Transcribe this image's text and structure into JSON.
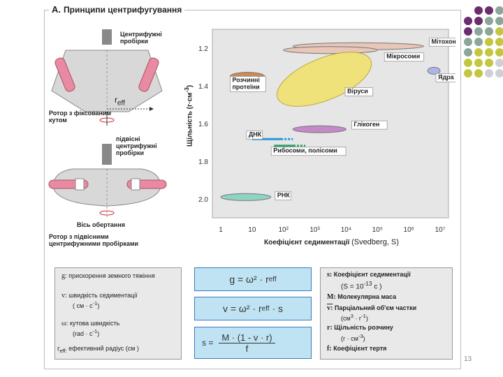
{
  "title": {
    "letter": "A.",
    "text": "Принципи центрифугування"
  },
  "rotor_fixed": {
    "tubes_label_l1": "Центрифужні",
    "tubes_label_l2": "пробірки",
    "reff": "r",
    "reff_sub": "eff",
    "caption_l1": "Ротор з фіксованим",
    "caption_l2": "кутом"
  },
  "rotor_swing": {
    "tubes_label_l1": "підвісні",
    "tubes_label_l2": "центрифужні",
    "tubes_label_l3": "пробірки",
    "axis_label": "Вісь обертання",
    "caption_l1": "Ротор з підвісними",
    "caption_l2": "центрифужними пробірками"
  },
  "chart_data": {
    "type": "scatter",
    "title": "",
    "xlabel": "Коефіцієнт седиментації",
    "xlabel_suffix": "(Svedberg, S)",
    "ylabel": "Щільність (г·см",
    "ylabel_exp": "-3",
    "ylabel_close": ")",
    "x_scale": "log",
    "xlim": [
      1,
      10000000
    ],
    "ylim": [
      1.1,
      2.1
    ],
    "x_ticks": [
      "1",
      "10",
      "10²",
      "10³",
      "10⁴",
      "10⁵",
      "10⁶",
      "10⁷"
    ],
    "y_ticks": [
      "1.2",
      "1.4",
      "1.6",
      "1.8",
      "2.0"
    ],
    "items": [
      {
        "name": "Мітохондрії",
        "x_range": [
          200,
          3000000
        ],
        "y": 1.19,
        "color": "#e8c6b8"
      },
      {
        "name": "Мікросоми",
        "x_range": [
          100,
          100000
        ],
        "y": 1.21,
        "color": "#e8c6b8"
      },
      {
        "name": "Розчинні протеїни",
        "x_range": [
          2,
          25
        ],
        "y": 1.35,
        "color": "#cc8a55"
      },
      {
        "name": "Віруси",
        "x_range": [
          50,
          80000
        ],
        "y": 1.35,
        "color": "#f0e27a"
      },
      {
        "name": "Ядра",
        "x_range": [
          4000000,
          10000000
        ],
        "y": 1.32,
        "color": "#a9b6e6"
      },
      {
        "name": "Глікоген",
        "x_range": [
          200,
          10000
        ],
        "y": 1.63,
        "color": "#c389c9"
      },
      {
        "name": "ДНК",
        "x_range": [
          10,
          200
        ],
        "y": 1.69,
        "color": "#2a95d6"
      },
      {
        "name": "Рибосоми, полісоми",
        "x_range": [
          50,
          500
        ],
        "y": 1.71,
        "color": "#2fa36a"
      },
      {
        "name": "РНК",
        "x_range": [
          1,
          40
        ],
        "y": 1.99,
        "color": "#8fd3c5"
      }
    ]
  },
  "legend": {
    "g_key": "g:",
    "g_text": "прискорення земного тяжіння",
    "v_key": "v:",
    "v_text": "швидкість седиментації",
    "v_unit": "( см · с",
    "w_key": "ω:",
    "w_text": "кутова швидкість",
    "w_unit": "(rad · с",
    "reff_key": "r",
    "reff_sub": "eff:",
    "reff_text": "ефективний радіус",
    "reff_unit": "(см )",
    "unit_exp": "-1",
    "unit_close": ")"
  },
  "formulas": {
    "f1": "g = ω² · r",
    "f1_sub": "eff",
    "f2": "v = ω² · r",
    "f2_sub": "eff",
    "f2_tail": "· s",
    "f3_lhs": "s =",
    "f3_num": "M · (1 - v · r)",
    "f3_den": "f"
  },
  "right_legend": {
    "s_key": "s:",
    "s_text": "Коефіцієнт седиментації",
    "s_def": "(S = 10",
    "s_def_exp": "-13",
    "s_def_tail": "с )",
    "m_key": "M:",
    "m_text": "Молекулярна маса",
    "vbar_key": "v:",
    "vbar_text": "Парціальний об'єм частки",
    "vbar_unit": "(см",
    "vbar_unit_exp1": "3",
    "vbar_unit_mid": " · г",
    "vbar_unit_exp2": "-1",
    "vbar_unit_close": ")",
    "r_key": "r:",
    "r_text": "Щільність розчину",
    "r_unit": "(г · см",
    "r_unit_exp": "-3",
    "r_unit_close": ")",
    "f_key": "f:",
    "f_text": "Коефіцієнт тертя"
  },
  "page_number": "13",
  "deco_colors": [
    "#6b2d6e",
    "#8aa79a",
    "#c3c640",
    "#cfcfd8"
  ]
}
